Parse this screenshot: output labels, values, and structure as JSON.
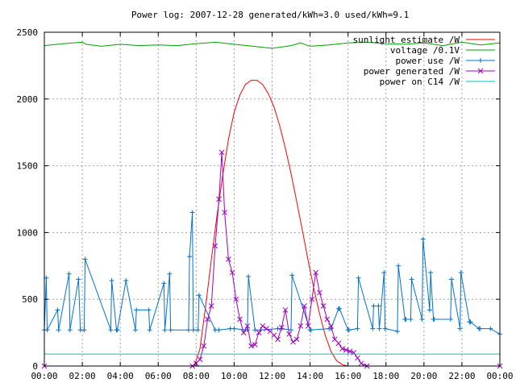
{
  "chart_data": {
    "type": "line",
    "title": "Power log: 2007-12-28 generated/kWh=3.0 used/kWh=9.1",
    "xlabel": "",
    "ylabel": "",
    "x_unit": "hour of day",
    "xlim": [
      0,
      24
    ],
    "ylim": [
      0,
      2500
    ],
    "x_ticks": [
      0,
      2,
      4,
      6,
      8,
      10,
      12,
      14,
      16,
      18,
      20,
      22,
      24
    ],
    "x_tick_labels": [
      "00:00",
      "02:00",
      "04:00",
      "06:00",
      "08:00",
      "10:00",
      "12:00",
      "14:00",
      "16:00",
      "18:00",
      "20:00",
      "22:00",
      "00:00"
    ],
    "y_ticks": [
      0,
      500,
      1000,
      1500,
      2000,
      2500
    ],
    "grid": true,
    "legend_position": "top-right",
    "series": [
      {
        "name": "sunlight estimate /W",
        "color": "#ff0000",
        "marker": "none",
        "x": [
          0,
          7.9,
          8.2,
          8.5,
          8.8,
          9.1,
          9.4,
          9.7,
          10.0,
          10.3,
          10.6,
          10.9,
          11.2,
          11.5,
          11.8,
          12.1,
          12.4,
          12.7,
          13.0,
          13.3,
          13.6,
          13.9,
          14.2,
          14.5,
          14.8,
          15.1,
          15.4,
          15.7,
          16.0,
          16.3,
          24
        ],
        "y": [
          0,
          0,
          130,
          450,
          800,
          1130,
          1430,
          1700,
          1900,
          2030,
          2110,
          2140,
          2140,
          2110,
          2040,
          1940,
          1800,
          1630,
          1440,
          1230,
          1010,
          790,
          580,
          390,
          230,
          110,
          40,
          10,
          0,
          0,
          0
        ]
      },
      {
        "name": "voltage /0.1V",
        "color": "#00a000",
        "marker": "none",
        "x": [
          0,
          1,
          2,
          2.2,
          3,
          4,
          5,
          6,
          7,
          8,
          9,
          10,
          11,
          12,
          13,
          13.5,
          14,
          15,
          16,
          17,
          18,
          19,
          20,
          21,
          22,
          23,
          24
        ],
        "y": [
          2400,
          2415,
          2425,
          2410,
          2395,
          2410,
          2400,
          2405,
          2400,
          2415,
          2425,
          2410,
          2395,
          2380,
          2400,
          2420,
          2395,
          2405,
          2420,
          2425,
          2415,
          2410,
          2420,
          2400,
          2425,
          2405,
          2420
        ]
      },
      {
        "name": "power use /W",
        "color": "#0072d0",
        "marker": "plus",
        "x": [
          0,
          0.1,
          0.15,
          0.7,
          0.75,
          1.3,
          1.35,
          1.8,
          1.9,
          2.1,
          2.15,
          3.5,
          3.55,
          3.8,
          3.85,
          4.3,
          4.8,
          4.85,
          5.5,
          5.55,
          6.3,
          6.35,
          6.6,
          6.65,
          7.6,
          7.65,
          7.8,
          7.85,
          8.1,
          8.15,
          9.0,
          9.2,
          9.8,
          10.0,
          10.7,
          10.75,
          11.1,
          11.4,
          12.3,
          12.5,
          13.0,
          13.05,
          14.0,
          14.05,
          15.0,
          15.1,
          15.5,
          15.55,
          16.0,
          16.05,
          16.5,
          16.55,
          17.3,
          17.35,
          17.6,
          17.65,
          17.9,
          17.95,
          18.6,
          18.65,
          19.0,
          19.05,
          19.3,
          19.35,
          19.9,
          19.95,
          20.3,
          20.35,
          20.5,
          20.55,
          21.4,
          21.45,
          21.9,
          21.95,
          22.4,
          22.45,
          22.9,
          22.95,
          23.5,
          24
        ],
        "y": [
          270,
          660,
          270,
          420,
          270,
          690,
          270,
          650,
          270,
          270,
          800,
          270,
          640,
          270,
          270,
          640,
          270,
          420,
          420,
          270,
          620,
          270,
          690,
          270,
          270,
          820,
          1150,
          270,
          270,
          530,
          270,
          270,
          280,
          280,
          270,
          670,
          270,
          270,
          280,
          280,
          270,
          680,
          270,
          270,
          280,
          280,
          430,
          430,
          270,
          270,
          280,
          660,
          280,
          450,
          450,
          280,
          700,
          280,
          260,
          750,
          350,
          350,
          350,
          650,
          350,
          950,
          420,
          700,
          350,
          350,
          350,
          650,
          280,
          700,
          330,
          330,
          280,
          280,
          280,
          240
        ]
      },
      {
        "name": "power generated /W",
        "color": "#a000c0",
        "marker": "cross",
        "x": [
          0,
          7.8,
          8.0,
          8.2,
          8.4,
          8.6,
          8.8,
          9.0,
          9.2,
          9.35,
          9.5,
          9.7,
          9.9,
          10.1,
          10.3,
          10.5,
          10.7,
          10.9,
          11.1,
          11.3,
          11.5,
          11.7,
          11.9,
          12.1,
          12.3,
          12.5,
          12.7,
          12.9,
          13.1,
          13.3,
          13.5,
          13.7,
          13.9,
          14.1,
          14.3,
          14.5,
          14.7,
          14.9,
          15.1,
          15.3,
          15.5,
          15.7,
          15.9,
          16.1,
          16.3,
          16.5,
          16.7,
          17.0,
          24
        ],
        "y": [
          0,
          0,
          20,
          50,
          150,
          350,
          450,
          900,
          1250,
          1600,
          1150,
          800,
          700,
          500,
          350,
          250,
          300,
          150,
          160,
          250,
          300,
          280,
          260,
          230,
          200,
          290,
          420,
          240,
          180,
          200,
          300,
          450,
          300,
          500,
          700,
          550,
          450,
          350,
          300,
          200,
          170,
          130,
          120,
          110,
          100,
          60,
          20,
          0,
          0
        ]
      },
      {
        "name": "power on C14 /W",
        "color": "#00c0c0",
        "marker": "none",
        "x": [
          0,
          8,
          12,
          16,
          24
        ],
        "y": [
          90,
          90,
          90,
          90,
          90
        ]
      }
    ]
  }
}
